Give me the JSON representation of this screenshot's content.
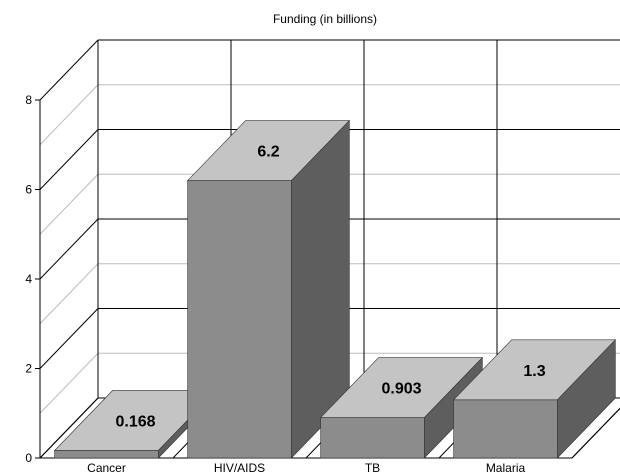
{
  "chart_data": {
    "type": "bar",
    "title": "Funding (in billions)",
    "xlabel": "",
    "ylabel": "",
    "categories": [
      "Cancer",
      "HIV/AIDS",
      "TB",
      "Malaria"
    ],
    "values": [
      0.168,
      6.2,
      0.903,
      1.3
    ],
    "value_labels": [
      "0.168",
      "6.2",
      "0.903",
      "1.3"
    ],
    "ylim": [
      0,
      8
    ],
    "yticks": [
      "0",
      "2",
      "4",
      "6",
      "8"
    ],
    "grid": true,
    "style": "3d",
    "colors": {
      "bar_front": "#8c8c8c",
      "bar_top": "#c4c4c4",
      "bar_side": "#5e5e5e",
      "grid": "#000000",
      "grid_minor": "#bdbdbd"
    }
  }
}
